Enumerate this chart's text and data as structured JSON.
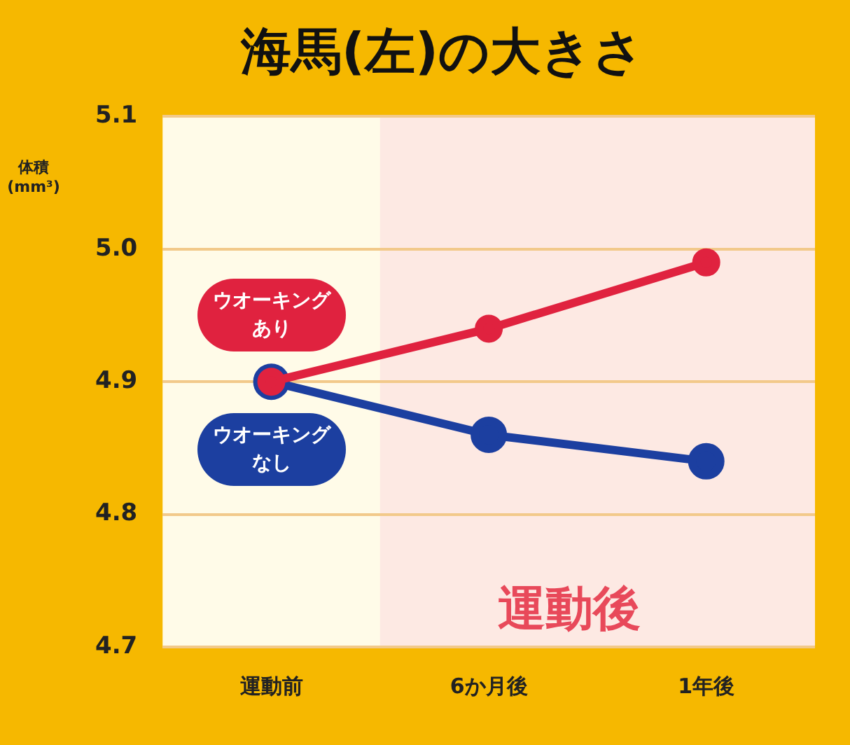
{
  "chart_data": {
    "type": "line",
    "title": "海馬(左)の大きさ",
    "ylabel": "体積(mm³)",
    "categories": [
      "運動前",
      "6か月後",
      "1年後"
    ],
    "series": [
      {
        "name": "ウオーキングあり",
        "color": "#e0223f",
        "values": [
          4.9,
          4.94,
          4.99
        ]
      },
      {
        "name": "ウオーキングなし",
        "color": "#1c3fa0",
        "values": [
          4.9,
          4.86,
          4.84
        ]
      }
    ],
    "ylim": [
      4.7,
      5.1
    ],
    "yticks": [
      {
        "value": 4.7,
        "label": "4.7"
      },
      {
        "value": 4.8,
        "label": "4.8"
      },
      {
        "value": 4.9,
        "label": "4.9"
      },
      {
        "value": 5.0,
        "label": "5.0"
      },
      {
        "value": 5.1,
        "label": "5.1"
      }
    ],
    "grid": "y",
    "marker": "circle",
    "line_style": "solid",
    "bands": [
      {
        "axis": "x",
        "from": "6か月後",
        "to": "1年後",
        "label": "運動後",
        "color": "#fde9e3"
      }
    ]
  }
}
